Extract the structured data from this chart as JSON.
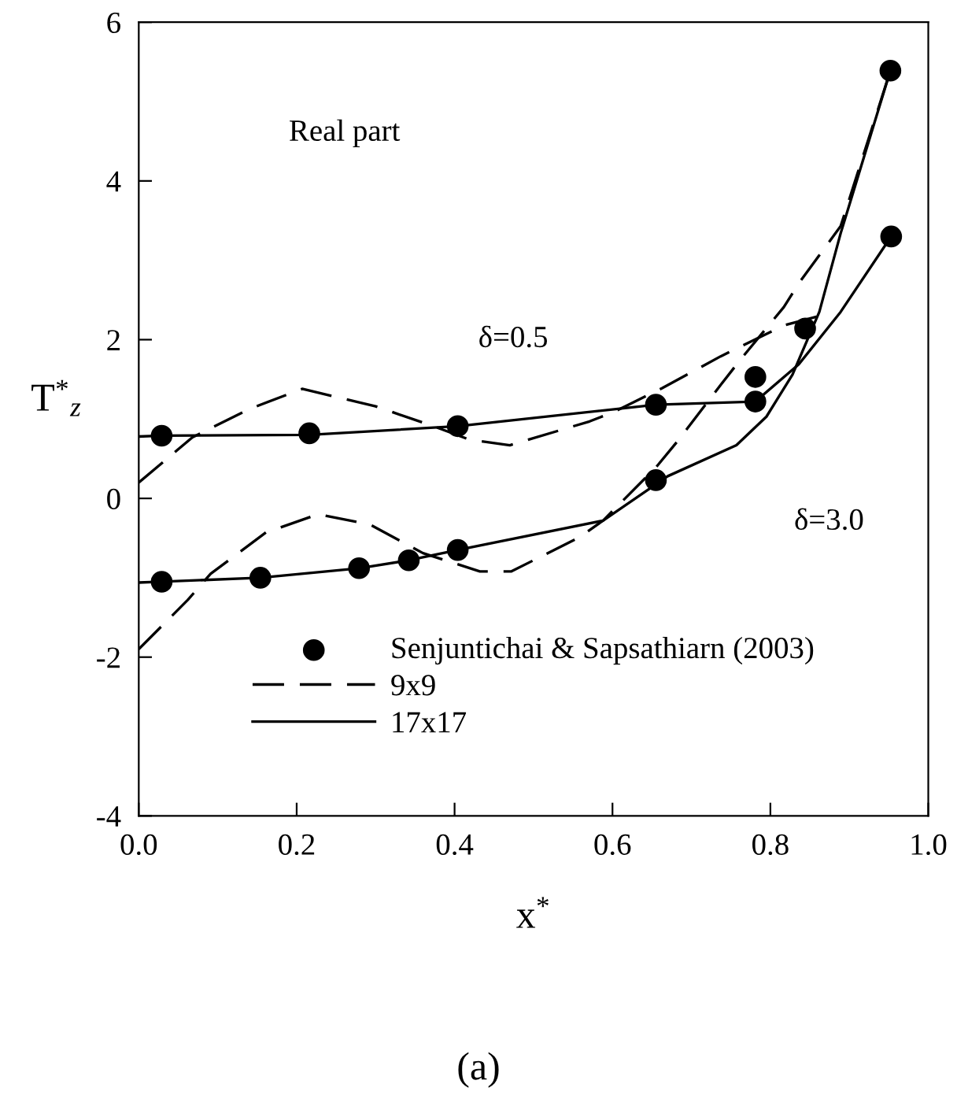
{
  "chart_data": {
    "type": "line",
    "xlabel": "x$^{*}$",
    "ylabel": "T$^{*}$$_{z}$",
    "xlim": [
      0,
      1
    ],
    "ylim": [
      -4,
      6
    ],
    "xticks": [
      {
        "value": 0,
        "label": "0.0"
      },
      0.2,
      0.4,
      0.6,
      0.8,
      {
        "value": 1,
        "label": "1.0"
      }
    ],
    "yticks": [
      {
        "value": -4,
        "label": "-4"
      },
      {
        "value": -2,
        "label": "-2"
      },
      0,
      2,
      4,
      6
    ],
    "grid": false,
    "legend": "bottom",
    "series": [
      {
        "name": "Senjuntichai & Sapsathiarn (2003)",
        "type": "scatter",
        "marker": "circle",
        "color": "#000000",
        "x": [
          0.029,
          0.216,
          0.404,
          0.655,
          0.781,
          0.781,
          0.844,
          0.953,
          0.952,
          0.029,
          0.154,
          0.279,
          0.342,
          0.404,
          0.655
        ],
        "values": [
          0.79,
          0.82,
          0.91,
          1.18,
          1.22,
          1.53,
          2.14,
          3.3,
          5.39,
          -1.05,
          -1.0,
          -0.88,
          -0.78,
          -0.65,
          0.23
        ]
      },
      {
        "name": "9x9",
        "line_style": "dashed",
        "color": "#000000",
        "x": [
          0.0,
          0.068,
          0.141,
          0.207,
          0.3,
          0.373,
          0.419,
          0.47,
          0.571,
          0.604,
          0.663,
          0.737,
          0.817,
          0.87
        ],
        "values": [
          0.2,
          0.77,
          1.13,
          1.38,
          1.16,
          0.91,
          0.74,
          0.67,
          0.97,
          1.1,
          1.39,
          1.79,
          2.18,
          2.32
        ]
      },
      {
        "line_style": "dashed",
        "color": "#000000",
        "x": [
          0.0,
          0.062,
          0.091,
          0.161,
          0.227,
          0.293,
          0.36,
          0.432,
          0.472,
          0.558,
          0.588,
          0.655,
          0.684,
          0.737,
          0.763,
          0.817,
          0.836,
          0.889,
          0.952
        ],
        "values": [
          -1.9,
          -1.28,
          -0.95,
          -0.43,
          -0.2,
          -0.33,
          -0.69,
          -0.92,
          -0.92,
          -0.49,
          -0.28,
          0.39,
          0.74,
          1.43,
          1.76,
          2.41,
          2.71,
          3.43,
          5.39
        ]
      },
      {
        "name": "17x17",
        "line_style": "solid",
        "color": "#000000",
        "x": [
          0.0,
          0.029,
          0.216,
          0.404,
          0.655,
          0.781,
          0.836,
          0.889,
          0.953
        ],
        "values": [
          0.78,
          0.79,
          0.8,
          0.91,
          1.18,
          1.22,
          1.69,
          2.35,
          3.3
        ]
      },
      {
        "line_style": "solid",
        "color": "#000000",
        "x": [
          0.0,
          0.029,
          0.154,
          0.279,
          0.342,
          0.404,
          0.588,
          0.67,
          0.757,
          0.795,
          0.828,
          0.862,
          0.889,
          0.952
        ],
        "values": [
          -1.06,
          -1.05,
          -1.0,
          -0.88,
          -0.78,
          -0.65,
          -0.28,
          0.28,
          0.67,
          1.03,
          1.56,
          2.35,
          3.34,
          5.39
        ]
      }
    ],
    "annotations": [
      "Real part",
      "δ=0.5",
      "δ=3.0",
      "(a)"
    ]
  }
}
